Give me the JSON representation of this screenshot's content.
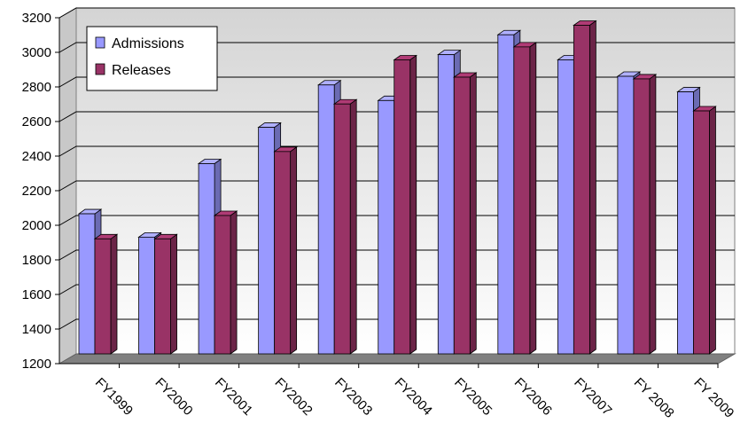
{
  "chart_data": {
    "type": "bar",
    "categories": [
      "FY1999",
      "FY2000",
      "FY2001",
      "FY2002",
      "FY2003",
      "FY2004",
      "FY2005",
      "FY2006",
      "FY2007",
      "FY 2008",
      "FY 2009"
    ],
    "series": [
      {
        "name": "Admissions",
        "values": [
          2010,
          1875,
          2300,
          2510,
          2755,
          2665,
          2930,
          3045,
          2900,
          2805,
          2715
        ]
      },
      {
        "name": "Releases",
        "values": [
          1865,
          1865,
          2000,
          2370,
          2645,
          2900,
          2800,
          2975,
          3100,
          2790,
          2605
        ]
      }
    ],
    "ylim": [
      1200,
      3200
    ],
    "yticks": [
      1200,
      1400,
      1600,
      1800,
      2000,
      2200,
      2400,
      2600,
      2800,
      3000,
      3200
    ],
    "ytick_labels": [
      "1200",
      "1400",
      "1600",
      "1800",
      "2000",
      "2200",
      "2400",
      "2600",
      "2800",
      "3000",
      "3200"
    ],
    "grid": true,
    "legend_position": "top-left",
    "colors": {
      "Admissions": "#9999FF",
      "Releases": "#993366",
      "wall_top": "#d8d8d8",
      "wall_bottom": "#ffffff",
      "floor": "#808080"
    }
  }
}
